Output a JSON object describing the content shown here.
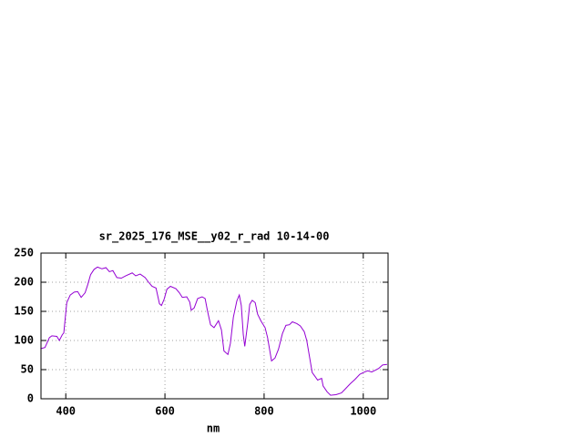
{
  "chart_data": {
    "type": "line",
    "title": "sr_2025_176_MSE__y02_r_rad 10-14-00",
    "x_label": "nm",
    "x": [
      349,
      358,
      367,
      372,
      382,
      387,
      393,
      396,
      402,
      409,
      417,
      424,
      431,
      439,
      444,
      450,
      457,
      464,
      473,
      481,
      488,
      495,
      503,
      512,
      521,
      534,
      541,
      550,
      560,
      567,
      574,
      582,
      589,
      593,
      598,
      604,
      611,
      622,
      629,
      635,
      644,
      650,
      653,
      659,
      666,
      675,
      681,
      686,
      692,
      699,
      705,
      708,
      714,
      719,
      727,
      732,
      738,
      745,
      750,
      754,
      758,
      761,
      767,
      771,
      776,
      782,
      787,
      794,
      802,
      807,
      815,
      822,
      829,
      837,
      844,
      851,
      857,
      866,
      873,
      881,
      886,
      892,
      897,
      903,
      908,
      916,
      919,
      927,
      934,
      945,
      956,
      965,
      974,
      983,
      993,
      1000,
      1009,
      1017,
      1024,
      1031,
      1039,
      1048
    ],
    "series": [
      {
        "color": "#9400d3",
        "values": [
          86,
          88,
          105,
          108,
          107,
          100,
          110,
          113,
          165,
          178,
          183,
          184,
          174,
          182,
          195,
          213,
          222,
          226,
          223,
          225,
          218,
          220,
          208,
          207,
          211,
          216,
          211,
          214,
          208,
          200,
          193,
          190,
          163,
          160,
          170,
          188,
          193,
          189,
          182,
          174,
          175,
          166,
          152,
          156,
          172,
          175,
          172,
          150,
          127,
          122,
          130,
          134,
          118,
          82,
          76,
          95,
          140,
          168,
          178,
          160,
          110,
          90,
          130,
          162,
          169,
          165,
          145,
          133,
          122,
          105,
          65,
          70,
          85,
          112,
          126,
          127,
          132,
          129,
          125,
          115,
          100,
          70,
          45,
          38,
          32,
          35,
          22,
          12,
          6,
          7,
          10,
          18,
          26,
          33,
          42,
          45,
          48,
          46,
          49,
          52,
          58,
          59
        ]
      }
    ],
    "xlim": [
      350,
      1050
    ],
    "ylim": [
      0,
      250
    ],
    "xticks": [
      400,
      600,
      800,
      1000
    ],
    "yticks": [
      0,
      50,
      100,
      150,
      200,
      250
    ],
    "grid": true
  }
}
